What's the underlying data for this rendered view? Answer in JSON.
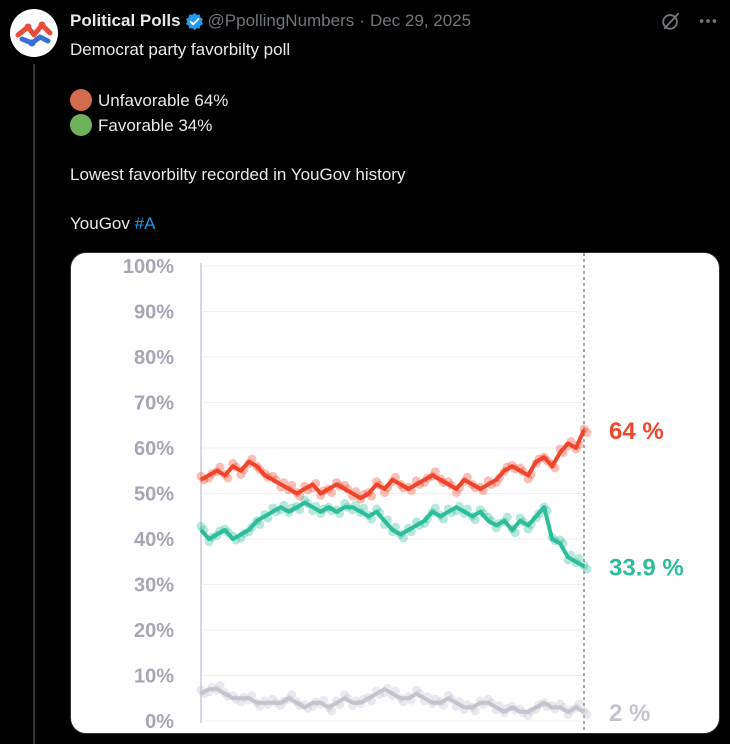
{
  "post": {
    "author_name": "Political Polls",
    "handle": "@PpollingNumbers",
    "separator": "·",
    "date": "Dec 29, 2025",
    "lines": {
      "title": "Democrat party favorbilty poll",
      "unfavorable": "Unfavorable 64%",
      "favorable": "Favorable 34%",
      "note": "Lowest favorbilty recorded in YouGov history",
      "source": "YouGov",
      "hashtag": "#A"
    },
    "icons": {
      "avatar": "political-polls-logo",
      "verified": "verified-badge-icon",
      "grok": "grok-icon",
      "more": "more-icon",
      "unfavorable_dot": "red-circle",
      "favorable_dot": "green-circle"
    },
    "colors": {
      "unfavorable": "#f0442c",
      "favorable": "#2dbd9a",
      "other": "#c4c4cf",
      "hashtag": "#1d9bf0"
    }
  },
  "chart_data": {
    "type": "line",
    "ylim": [
      0,
      100
    ],
    "yticks": [
      "0%",
      "10%",
      "20%",
      "30%",
      "40%",
      "50%",
      "60%",
      "70%",
      "80%",
      "90%",
      "100%"
    ],
    "grid": true,
    "series": [
      {
        "key": "unfavorable",
        "label": "64 %",
        "values": [
          53,
          54,
          55,
          54,
          56,
          55,
          57,
          56,
          54,
          53,
          52,
          51,
          50,
          51,
          52,
          50,
          51,
          52,
          51,
          50,
          49,
          50,
          52,
          51,
          53,
          52,
          51,
          52,
          53,
          54,
          53,
          52,
          51,
          53,
          52,
          51,
          52,
          53,
          55,
          56,
          55,
          54,
          57,
          58,
          56,
          59,
          61,
          60,
          64
        ]
      },
      {
        "key": "favorable",
        "label": "33.9 %",
        "values": [
          42,
          40,
          41,
          42,
          40,
          41,
          42,
          44,
          45,
          46,
          47,
          46,
          47,
          48,
          47,
          46,
          47,
          46,
          47,
          47,
          46,
          45,
          46,
          44,
          42,
          41,
          42,
          43,
          44,
          46,
          45,
          46,
          47,
          46,
          45,
          46,
          44,
          43,
          44,
          42,
          44,
          43,
          45,
          47,
          40,
          39,
          36,
          35,
          34
        ]
      },
      {
        "key": "other",
        "label": "2 %",
        "values": [
          6,
          7,
          7,
          6,
          5,
          5,
          5,
          4,
          4,
          4,
          4,
          5,
          4,
          3,
          4,
          4,
          3,
          4,
          5,
          4,
          4,
          5,
          6,
          7,
          6,
          5,
          5,
          6,
          5,
          4,
          4,
          5,
          4,
          3,
          3,
          4,
          4,
          3,
          2,
          3,
          2,
          2,
          3,
          4,
          3,
          3,
          2,
          3,
          2
        ]
      }
    ]
  }
}
